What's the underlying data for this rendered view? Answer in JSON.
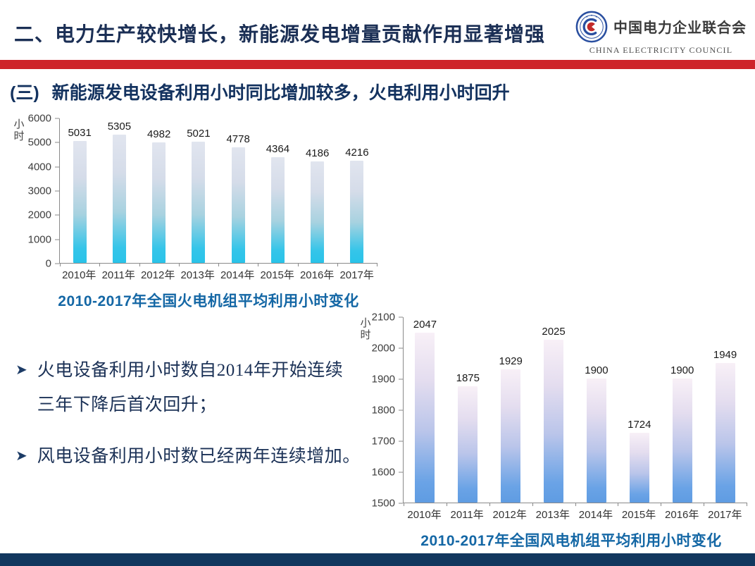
{
  "header": {
    "title": "二、电力生产较快增长，新能源发电增量贡献作用显著增强",
    "logo": {
      "name_cn": "中国电力企业联合会",
      "name_en": "CHINA ELECTRICITY COUNCIL"
    }
  },
  "section": {
    "prefix": "(三)",
    "title": "新能源发电设备利用小时同比增加较多，火电利用小时回升"
  },
  "bullets": [
    "火电设备利用小时数自2014年开始连续三年下降后首次回升；",
    "风电设备利用小时数已经两年连续增加。"
  ],
  "colors": {
    "header_navy": "#1b2f55",
    "accent_red": "#ce2329",
    "chart_title_blue": "#1467a5",
    "footer_navy": "#12375e",
    "thermal_bar_top": "#e1e5ef",
    "thermal_bar_bottom": "#29c3e9",
    "wind_bar_top": "#f8f0f7",
    "wind_bar_bottom": "#5f9ce2"
  },
  "chart_data": [
    {
      "type": "bar",
      "title": "2010-2017年全国火电机组平均利用小时变化",
      "ylabel": "小时",
      "xlabel": "",
      "categories": [
        "2010年",
        "2011年",
        "2012年",
        "2013年",
        "2014年",
        "2015年",
        "2016年",
        "2017年"
      ],
      "values": [
        5031,
        5305,
        4982,
        5021,
        4778,
        4364,
        4186,
        4216
      ],
      "ylim": [
        0,
        6000
      ],
      "ytick_step": 1000,
      "grid": false,
      "legend_position": "none",
      "data_labels": true
    },
    {
      "type": "bar",
      "title": "2010-2017年全国风电机组平均利用小时变化",
      "ylabel": "小时",
      "xlabel": "",
      "categories": [
        "2010年",
        "2011年",
        "2012年",
        "2013年",
        "2014年",
        "2015年",
        "2016年",
        "2017年"
      ],
      "values": [
        2047,
        1875,
        1929,
        2025,
        1900,
        1724,
        1900,
        1949
      ],
      "ylim": [
        1500,
        2100
      ],
      "ytick_step": 100,
      "grid": false,
      "legend_position": "none",
      "data_labels": true
    }
  ]
}
